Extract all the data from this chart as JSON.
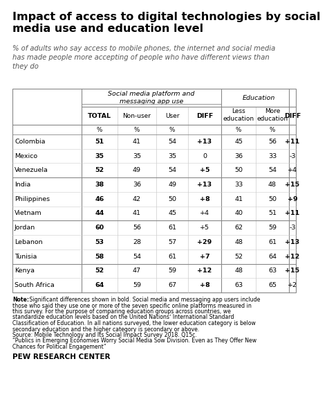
{
  "title": "Impact of access to digital technologies by social\nmedia use and education level",
  "subtitle": "% of adults who say access to mobile phones, the internet and social media\nhas made people more accepting of people who have different views than\nthey do",
  "header_social": "Social media platform and\nmessaging app use",
  "header_education": "Education",
  "countries": [
    "Colombia",
    "Mexico",
    "Venezuela",
    "India",
    "Philippines",
    "Vietnam",
    "Jordan",
    "Lebanon",
    "Tunisia",
    "Kenya",
    "South Africa"
  ],
  "data": [
    [
      51,
      41,
      54,
      "+13",
      45,
      56,
      "+11"
    ],
    [
      35,
      35,
      35,
      "0",
      36,
      33,
      "-3"
    ],
    [
      52,
      49,
      54,
      "+5",
      50,
      54,
      "+4"
    ],
    [
      38,
      36,
      49,
      "+13",
      33,
      48,
      "+15"
    ],
    [
      46,
      42,
      50,
      "+8",
      41,
      50,
      "+9"
    ],
    [
      44,
      41,
      45,
      "+4",
      40,
      51,
      "+11"
    ],
    [
      60,
      56,
      61,
      "+5",
      62,
      59,
      "-3"
    ],
    [
      53,
      28,
      57,
      "+29",
      48,
      61,
      "+13"
    ],
    [
      58,
      54,
      61,
      "+7",
      52,
      64,
      "+12"
    ],
    [
      52,
      47,
      59,
      "+12",
      48,
      63,
      "+15"
    ],
    [
      64,
      59,
      67,
      "+8",
      63,
      65,
      "+2"
    ]
  ],
  "bold_diff1": [
    true,
    false,
    true,
    true,
    true,
    false,
    false,
    true,
    true,
    true,
    true
  ],
  "bold_diff2": [
    true,
    false,
    false,
    true,
    true,
    true,
    false,
    true,
    true,
    true,
    false
  ],
  "group_separators": [
    3,
    6,
    9
  ],
  "diff_col_bg": "#c8c0b0",
  "note_line1": "Note: Significant differences shown in bold. Social media and messaging app users include",
  "note_line2": "those who said they use one or more of the seven specific online platforms measured in",
  "note_line3": "this survey. For the purpose of comparing education groups across countries, we",
  "note_line4": "standardize education levels based on the United Nationsʼ International Standard",
  "note_line5": "Classification of Education. In all nations surveyed, the lower education category is below",
  "note_line6": "secondary education and the higher category is secondary or above.",
  "note_line7": "Source: Mobile Technology and Its Social Impact Survey 2018. Q15c.",
  "note_line8": "“Publics in Emerging Economies Worry Social Media Sow Division. Even as They Offer New",
  "note_line9": "Chances for Political Engagement”",
  "footer": "PEW RESEARCH CENTER",
  "bg_color": "#ffffff"
}
